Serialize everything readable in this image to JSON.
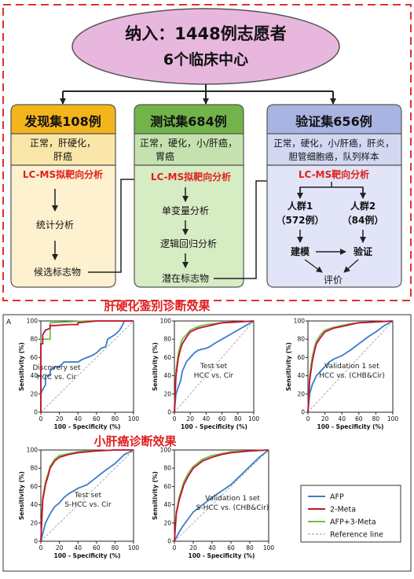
{
  "top": {
    "line1": "纳入：1448例志愿者",
    "line2": "6个临床中心"
  },
  "columns": [
    {
      "header": "发现集108例",
      "desc": [
        "正常，肝硬化，",
        "肝癌"
      ],
      "method": "LC-MS拟靶向分析",
      "steps": [
        "统计分析",
        "候选标志物"
      ]
    },
    {
      "header": "测试集684例",
      "desc": [
        "正常，硬化，小/肝癌，",
        "胃癌"
      ],
      "method": "LC-MS拟靶向分析",
      "steps": [
        "单变量分析",
        "逻辑回归分析",
        "潜在标志物"
      ]
    },
    {
      "header": "验证集656例",
      "desc": [
        "正常，硬化，小/肝癌，肝炎，",
        "胆管细胞癌，队列样本"
      ],
      "method": "LC-MS靶向分析",
      "group1": [
        "人群1",
        "（572例）"
      ],
      "group2": [
        "人群2",
        "（84例）"
      ],
      "model": "建模",
      "verify": "验证",
      "evaluate": "评价"
    }
  ],
  "section1_title": "肝硬化鉴别诊断效果",
  "section2_title": "小肝癌诊断效果",
  "panel_letter": "A",
  "axis": {
    "ylabel": "Sensitivity (%)",
    "xlabel": "100 - Specificity (%)",
    "ticks": [
      "0",
      "20",
      "40",
      "60",
      "80",
      "100"
    ]
  },
  "colors": {
    "afp": "#3b7cc9",
    "meta2": "#c8102e",
    "afp3meta": "#6cc24a",
    "ref": "#aaaaaa"
  },
  "legend": [
    {
      "label": "AFP",
      "color": "#3b7cc9",
      "dash": false
    },
    {
      "label": "2-Meta",
      "color": "#c8102e",
      "dash": false
    },
    {
      "label": "AFP+3-Meta",
      "color": "#6cc24a",
      "dash": false
    },
    {
      "label": "Reference line",
      "color": "#aaaaaa",
      "dash": true
    }
  ],
  "chart_data": [
    {
      "type": "line",
      "annotation": [
        "Discovery set",
        "HCC vs. Cir"
      ],
      "xlabel": "100 - Specificity (%)",
      "ylabel": "Sensitivity (%)",
      "xlim": [
        0,
        100
      ],
      "ylim": [
        0,
        100
      ],
      "series": [
        {
          "name": "AFP",
          "x": [
            0,
            0,
            2,
            5,
            5,
            10,
            10,
            15,
            20,
            25,
            30,
            40,
            45,
            50,
            55,
            60,
            65,
            70,
            72,
            80,
            85,
            88,
            90,
            100
          ],
          "y": [
            0,
            20,
            25,
            30,
            40,
            40,
            45,
            50,
            50,
            55,
            55,
            55,
            58,
            60,
            62,
            65,
            70,
            72,
            80,
            85,
            90,
            95,
            100,
            100
          ]
        },
        {
          "name": "2-Meta",
          "x": [
            0,
            0,
            2,
            2,
            5,
            10,
            10,
            15,
            30,
            40,
            40,
            60,
            100
          ],
          "y": [
            0,
            75,
            75,
            85,
            90,
            92,
            95,
            95,
            96,
            96,
            98,
            100,
            100
          ]
        },
        {
          "name": "AFP+3-Meta",
          "x": [
            0,
            0,
            10,
            10,
            50,
            100
          ],
          "y": [
            0,
            80,
            80,
            98,
            100,
            100
          ]
        }
      ]
    },
    {
      "type": "line",
      "annotation": [
        "Test set",
        "HCC vs. Cir"
      ],
      "xlabel": "100 - Specificity (%)",
      "ylabel": "Sensitivity (%)",
      "xlim": [
        0,
        100
      ],
      "ylim": [
        0,
        100
      ],
      "series": [
        {
          "name": "AFP",
          "x": [
            0,
            2,
            5,
            8,
            10,
            15,
            20,
            25,
            30,
            40,
            45,
            50,
            60,
            70,
            80,
            90,
            100
          ],
          "y": [
            0,
            20,
            28,
            35,
            45,
            55,
            60,
            65,
            68,
            70,
            72,
            75,
            80,
            85,
            90,
            95,
            100
          ]
        },
        {
          "name": "2-Meta",
          "x": [
            0,
            2,
            5,
            8,
            10,
            15,
            20,
            30,
            40,
            50,
            60,
            80,
            100
          ],
          "y": [
            0,
            40,
            60,
            70,
            75,
            82,
            88,
            92,
            94,
            96,
            98,
            99,
            100
          ]
        },
        {
          "name": "AFP+3-Meta",
          "x": [
            0,
            2,
            5,
            8,
            10,
            15,
            20,
            30,
            40,
            50,
            60,
            80,
            100
          ],
          "y": [
            0,
            45,
            65,
            75,
            80,
            85,
            90,
            94,
            96,
            97,
            98,
            99,
            100
          ]
        }
      ]
    },
    {
      "type": "line",
      "annotation": [
        "Validation 1 set",
        "HCC vs. (CHB&Cir)"
      ],
      "xlabel": "100 - Specificity (%)",
      "ylabel": "Sensitivity (%)",
      "xlim": [
        0,
        100
      ],
      "ylim": [
        0,
        100
      ],
      "series": [
        {
          "name": "AFP",
          "x": [
            0,
            2,
            5,
            10,
            15,
            20,
            25,
            30,
            40,
            50,
            60,
            70,
            80,
            90,
            100
          ],
          "y": [
            0,
            20,
            30,
            40,
            45,
            50,
            55,
            58,
            62,
            68,
            75,
            82,
            88,
            95,
            100
          ]
        },
        {
          "name": "2-Meta",
          "x": [
            0,
            2,
            5,
            8,
            10,
            15,
            20,
            30,
            40,
            50,
            60,
            80,
            100
          ],
          "y": [
            0,
            35,
            55,
            68,
            75,
            82,
            88,
            92,
            94,
            96,
            98,
            99,
            100
          ]
        },
        {
          "name": "AFP+3-Meta",
          "x": [
            0,
            2,
            5,
            8,
            10,
            15,
            20,
            30,
            40,
            50,
            60,
            80,
            100
          ],
          "y": [
            0,
            40,
            60,
            72,
            78,
            85,
            90,
            93,
            95,
            97,
            98,
            99,
            100
          ]
        }
      ]
    },
    {
      "type": "line",
      "annotation": [
        "Test set",
        "S-HCC vs. Cir"
      ],
      "xlabel": "100 - Specificity (%)",
      "ylabel": "Sensitivity (%)",
      "xlim": [
        0,
        100
      ],
      "ylim": [
        0,
        100
      ],
      "series": [
        {
          "name": "AFP",
          "x": [
            0,
            5,
            10,
            15,
            20,
            25,
            30,
            40,
            50,
            60,
            70,
            80,
            90,
            100
          ],
          "y": [
            0,
            20,
            30,
            38,
            42,
            48,
            52,
            58,
            62,
            70,
            78,
            85,
            95,
            100
          ]
        },
        {
          "name": "2-Meta",
          "x": [
            0,
            2,
            5,
            8,
            10,
            15,
            20,
            30,
            40,
            50,
            60,
            80,
            100
          ],
          "y": [
            0,
            45,
            62,
            72,
            80,
            88,
            92,
            95,
            97,
            98,
            99,
            100,
            100
          ]
        },
        {
          "name": "AFP+3-Meta",
          "x": [
            0,
            2,
            5,
            8,
            10,
            15,
            20,
            30,
            40,
            50,
            60,
            80,
            100
          ],
          "y": [
            0,
            48,
            65,
            75,
            82,
            90,
            94,
            96,
            98,
            99,
            99,
            100,
            100
          ]
        }
      ]
    },
    {
      "type": "line",
      "annotation": [
        "Validation 1 set",
        "S-HCC vs. (CHB&Cir)"
      ],
      "xlabel": "100 - Specificity (%)",
      "ylabel": "Sensitivity (%)",
      "xlim": [
        0,
        100
      ],
      "ylim": [
        0,
        100
      ],
      "series": [
        {
          "name": "AFP",
          "x": [
            0,
            5,
            10,
            15,
            20,
            30,
            40,
            50,
            60,
            70,
            80,
            90,
            100
          ],
          "y": [
            0,
            10,
            18,
            25,
            32,
            40,
            48,
            55,
            62,
            72,
            82,
            92,
            100
          ]
        },
        {
          "name": "2-Meta",
          "x": [
            0,
            2,
            5,
            8,
            10,
            15,
            20,
            30,
            40,
            50,
            60,
            80,
            100
          ],
          "y": [
            0,
            30,
            45,
            55,
            62,
            72,
            80,
            88,
            92,
            95,
            97,
            99,
            100
          ]
        },
        {
          "name": "AFP+3-Meta",
          "x": [
            0,
            2,
            5,
            8,
            10,
            15,
            20,
            30,
            40,
            50,
            60,
            80,
            100
          ],
          "y": [
            0,
            32,
            48,
            58,
            65,
            75,
            82,
            90,
            94,
            96,
            98,
            99,
            100
          ]
        }
      ]
    }
  ]
}
